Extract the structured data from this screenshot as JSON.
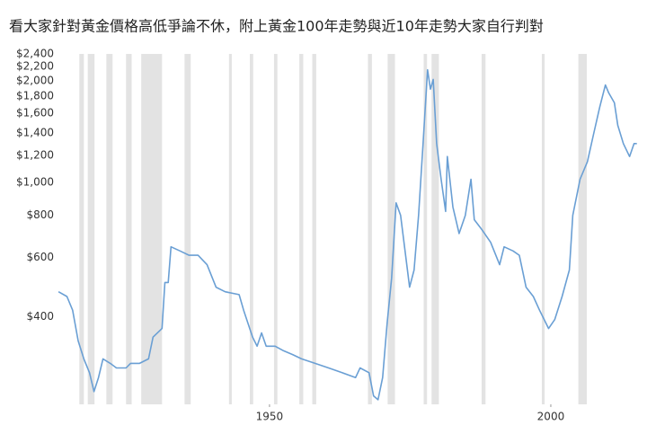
{
  "chart_data": {
    "type": "line",
    "title": "看大家針對黃金價格高低爭論不休，附上黃金100年走勢與近10年走勢大家自行判對",
    "log_scale_y": true,
    "color": "#6a9fd4",
    "band_color": "#e3e3e3",
    "bands": [
      [
        1916.2,
        1917.0
      ],
      [
        1917.7,
        1918.9
      ],
      [
        1921.0,
        1922.1
      ],
      [
        1924.5,
        1925.5
      ],
      [
        1927.2,
        1930.9
      ],
      [
        1934.9,
        1936.0
      ],
      [
        1942.8,
        1943.3
      ],
      [
        1946.5,
        1947.1
      ],
      [
        1950.8,
        1951.4
      ],
      [
        1955.3,
        1956.0
      ],
      [
        1957.6,
        1958.3
      ],
      [
        1967.5,
        1968.2
      ],
      [
        1971.0,
        1972.3
      ],
      [
        1977.4,
        1978.0
      ],
      [
        1978.8,
        1980.1
      ],
      [
        1987.7,
        1988.4
      ],
      [
        1998.4,
        1998.9
      ],
      [
        2004.9,
        2006.4
      ]
    ],
    "x": [
      1912.5,
      1914,
      1915,
      1916,
      1917,
      1918,
      1918.8,
      1919.6,
      1920.4,
      1921.7,
      1922.8,
      1924.5,
      1925.3,
      1926.9,
      1928.5,
      1929.3,
      1930.9,
      1931.4,
      1932,
      1932.5,
      1934.1,
      1935.7,
      1937.3,
      1938.9,
      1940.5,
      1942.1,
      1944.6,
      1945.4,
      1947,
      1947.8,
      1948.6,
      1949.4,
      1951,
      1952.5,
      1954.1,
      1955.7,
      1958.1,
      1960.5,
      1962.9,
      1965.3,
      1966.1,
      1967.7,
      1968.5,
      1969.3,
      1970.1,
      1970.9,
      1971.7,
      1972.5,
      1973.3,
      1974.1,
      1974.9,
      1975.7,
      1976.5,
      1977.3,
      1978.1,
      1978.6,
      1979.1,
      1979.7,
      1980.5,
      1981.3,
      1981.6,
      1982.6,
      1983.7,
      1984.8,
      1985.8,
      1986.4,
      1987.7,
      1989.3,
      1990.9,
      1991.7,
      1993.3,
      1994.4,
      1995.6,
      1996.9,
      1998,
      1999.6,
      2000.7,
      2002,
      2003.3,
      2003.9,
      2005.2,
      2006.5,
      2007.6,
      2008.7,
      2009.7,
      2010.3,
      2011.3,
      2011.9,
      2012.9,
      2014,
      2014.8,
      2015.3
    ],
    "values": [
      474,
      459,
      418,
      339,
      300,
      273,
      240,
      264,
      300,
      291,
      282,
      282,
      291,
      291,
      300,
      348,
      369,
      505,
      505,
      644,
      626,
      608,
      608,
      570,
      489,
      474,
      465,
      418,
      348,
      327,
      358,
      327,
      327,
      317,
      309,
      300,
      291,
      282,
      273,
      264,
      282,
      273,
      233,
      227,
      264,
      382,
      520,
      869,
      798,
      625,
      489,
      550,
      798,
      1302,
      2153,
      1887,
      2017,
      1302,
      1021,
      820,
      1192,
      845,
      705,
      798,
      1021,
      775,
      726,
      664,
      570,
      644,
      626,
      608,
      489,
      459,
      418,
      369,
      392,
      459,
      550,
      798,
      1021,
      1151,
      1387,
      1670,
      1942,
      1840,
      1720,
      1475,
      1302,
      1192,
      1302,
      1302
    ],
    "xlim": [
      1912,
      2015.5
    ],
    "xticks": [
      1950,
      2000
    ],
    "ylim": [
      220,
      2400
    ],
    "yticks": [
      {
        "value": 400,
        "label": "$400"
      },
      {
        "value": 600,
        "label": "$600"
      },
      {
        "value": 800,
        "label": "$800"
      },
      {
        "value": 1000,
        "label": "$1,000"
      },
      {
        "value": 1200,
        "label": "$1,200"
      },
      {
        "value": 1400,
        "label": "$1,400"
      },
      {
        "value": 1600,
        "label": "$1,600"
      },
      {
        "value": 1800,
        "label": "$1,800"
      },
      {
        "value": 2000,
        "label": "$2,000"
      },
      {
        "value": 2200,
        "label": "$2,200"
      },
      {
        "value": 2400,
        "label": "$2,400"
      }
    ]
  }
}
